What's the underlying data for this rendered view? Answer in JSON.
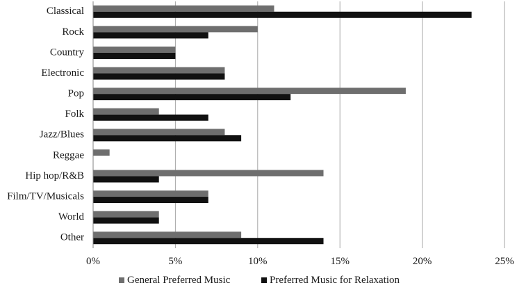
{
  "chart_data": {
    "type": "bar",
    "orientation": "horizontal",
    "categories": [
      "Classical",
      "Rock",
      "Country",
      "Electronic",
      "Pop",
      "Folk",
      "Jazz/Blues",
      "Reggae",
      "Hip hop/R&B",
      "Film/TV/Musicals",
      "World",
      "Other"
    ],
    "series": [
      {
        "name": "General Preferred Music",
        "color": "#6e6e6e",
        "values": [
          11,
          10,
          5,
          8,
          19,
          4,
          8,
          1,
          14,
          7,
          4,
          9
        ]
      },
      {
        "name": "Preferred Music for Relaxation",
        "color": "#111111",
        "values": [
          23,
          7,
          5,
          8,
          12,
          7,
          9,
          0,
          4,
          7,
          4,
          14
        ]
      }
    ],
    "xlim": [
      0,
      25
    ],
    "x_ticks": [
      0,
      5,
      10,
      15,
      20,
      25
    ],
    "x_tick_labels": [
      "0%",
      "5%",
      "10%",
      "15%",
      "20%",
      "25%"
    ],
    "grid": "vertical",
    "grid_color": "#a6a6a6",
    "legend_position": "bottom",
    "title": "",
    "xlabel": "",
    "ylabel": ""
  }
}
